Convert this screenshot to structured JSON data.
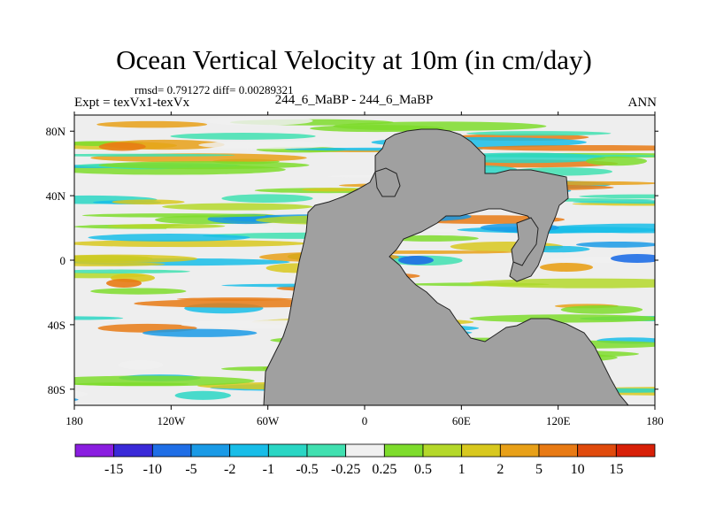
{
  "chart_data": {
    "type": "heatmap",
    "title": "Ocean Vertical Velocity at 10m (in cm/day)",
    "stats_text": "rmsd= 0.791272 diff= 0.00289321",
    "left_subtitle": "Expt = texVx1-texVx",
    "center_subtitle": "244_6_MaBP - 244_6_MaBP",
    "right_subtitle": "ANN",
    "x_ticks": [
      "180",
      "120W",
      "60W",
      "0",
      "60E",
      "120E",
      "180"
    ],
    "y_ticks": [
      "80N",
      "40N",
      "0",
      "40S",
      "80S"
    ],
    "x_range": [
      -180,
      180
    ],
    "y_range": [
      -90,
      90
    ],
    "colorbar": {
      "labels": [
        "-15",
        "-10",
        "-5",
        "-2",
        "-1",
        "-0.5",
        "-0.25",
        "0.25",
        "0.5",
        "1",
        "2",
        "5",
        "10",
        "15"
      ],
      "colors": [
        "#8a1ee0",
        "#3a2ad8",
        "#1f6ee6",
        "#1a9ae6",
        "#18bde8",
        "#2ad6c4",
        "#40e0b0",
        "#f0f0f0",
        "#7edc2c",
        "#b4d82a",
        "#d8c81e",
        "#e8a018",
        "#e87a14",
        "#e04a0c",
        "#d82008"
      ]
    },
    "land_color": "#a0a0a0",
    "ocean_neutral_color": "#eeeeee"
  }
}
